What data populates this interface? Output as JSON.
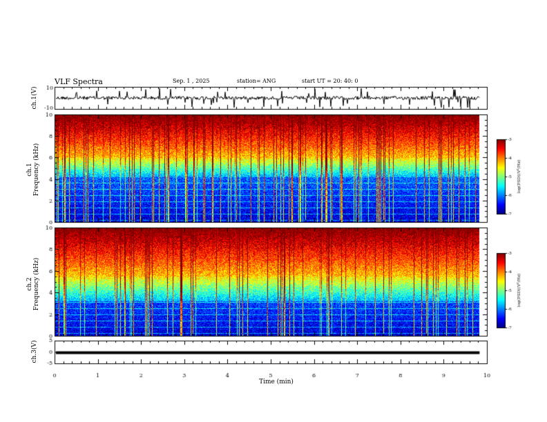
{
  "header": {
    "title": "VLF Spectra",
    "date": "Sep. 1 , 2025",
    "station": "station= ANG",
    "start": "start UT = 20: 40: 0"
  },
  "chart_data": [
    {
      "type": "line",
      "ylabel": "ch.1(V)",
      "ylim": [
        -10,
        10
      ],
      "yticklabels": [
        "10",
        "-10"
      ],
      "description_values": {
        "baseline": 0.0,
        "noise_level": 2,
        "spikes": true
      }
    },
    {
      "type": "heatmap",
      "ylabel_line1": "ch.1",
      "ylabel_line2": "Frequency (kHz)",
      "ylim": [
        0,
        10
      ],
      "yticks": [
        "0",
        "2",
        "4",
        "6",
        "8",
        "10"
      ],
      "xlim": [
        0,
        10
      ],
      "colorbar": {
        "label": "log(PSD)(V²/Hz)",
        "range": [
          -7,
          -3
        ],
        "ticks": [
          "-3",
          "-4",
          "-5",
          "-6",
          "-7"
        ]
      },
      "profile": {
        "low_band_top_khz": 4.2,
        "mid_band_top_khz": 6.0
      }
    },
    {
      "type": "heatmap",
      "ylabel_line1": "ch.2",
      "ylabel_line2": "Frequency (kHz)",
      "ylim": [
        0,
        10
      ],
      "yticks": [
        "0",
        "2",
        "4",
        "6",
        "8",
        "10"
      ],
      "xlim": [
        0,
        10
      ],
      "colorbar": {
        "label": "log(PSD)(V²/Hz)",
        "range": [
          -7,
          -3
        ],
        "ticks": [
          "-3",
          "-4",
          "-5",
          "-6",
          "-7"
        ]
      },
      "profile": {
        "low_band_top_khz": 3.2,
        "mid_band_top_khz": 5.5
      }
    },
    {
      "type": "line",
      "ylabel": "ch.3(V)",
      "ylim": [
        -5,
        5
      ],
      "yticklabels": [
        "5",
        "0",
        "-5"
      ],
      "values_constant": -0.3
    }
  ],
  "xaxis": {
    "label": "Time (min)",
    "ticks": [
      "0",
      "1",
      "2",
      "3",
      "4",
      "5",
      "6",
      "7",
      "8",
      "9",
      "10"
    ],
    "range": [
      0,
      10
    ],
    "data_end": 9.83
  }
}
